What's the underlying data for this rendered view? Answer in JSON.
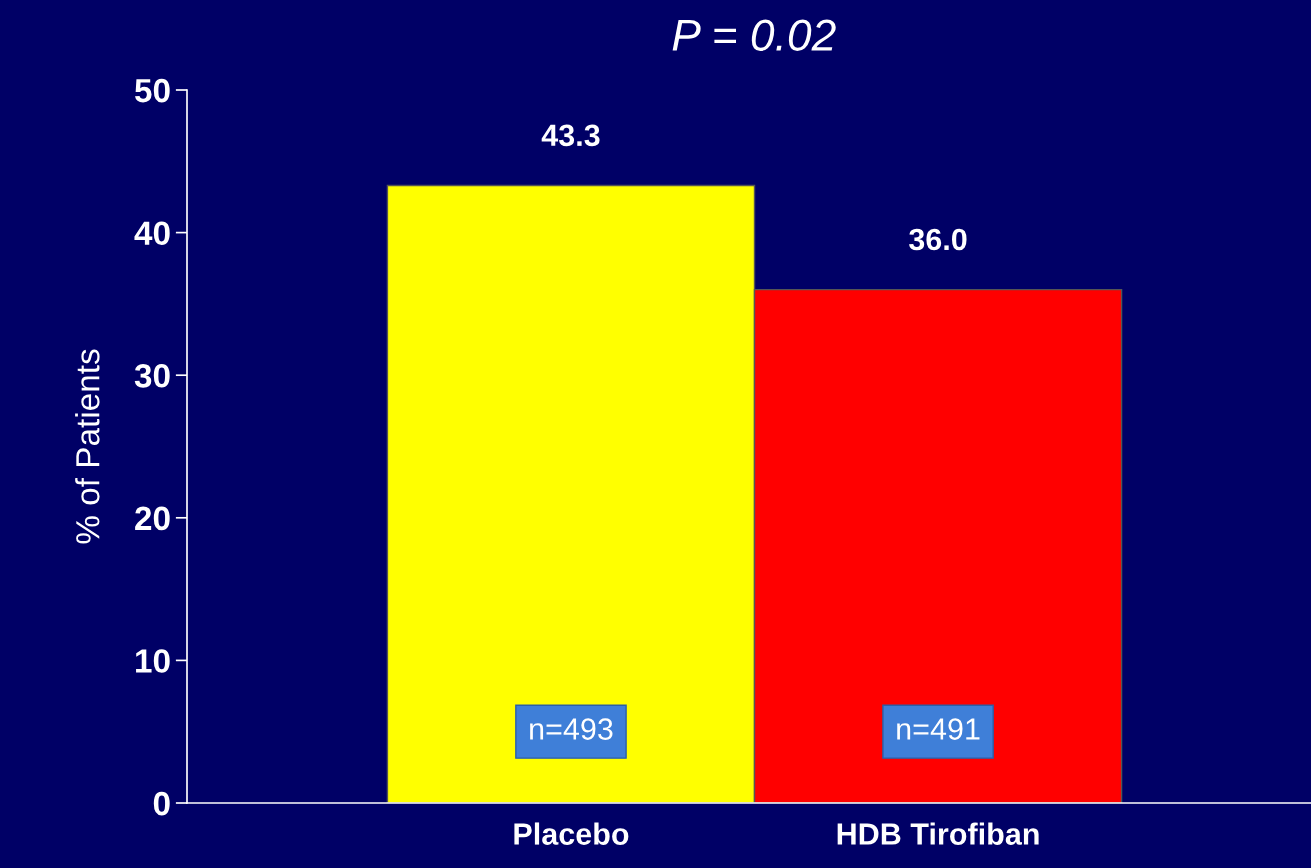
{
  "chart_data": {
    "type": "bar",
    "title": "P = 0.02",
    "ylabel": "% of Patients",
    "categories": [
      "Placebo",
      "HDB Tirofiban"
    ],
    "values": [
      43.3,
      36.0
    ],
    "colors": [
      "#ffff00",
      "#ff0000"
    ],
    "value_labels": [
      "43.3",
      "36.0"
    ],
    "ylim": [
      0,
      50
    ],
    "yticks": [
      0,
      10,
      20,
      30,
      40,
      50
    ],
    "grid": false,
    "legend": false,
    "annotations": [
      "n=493",
      "n=491"
    ]
  }
}
